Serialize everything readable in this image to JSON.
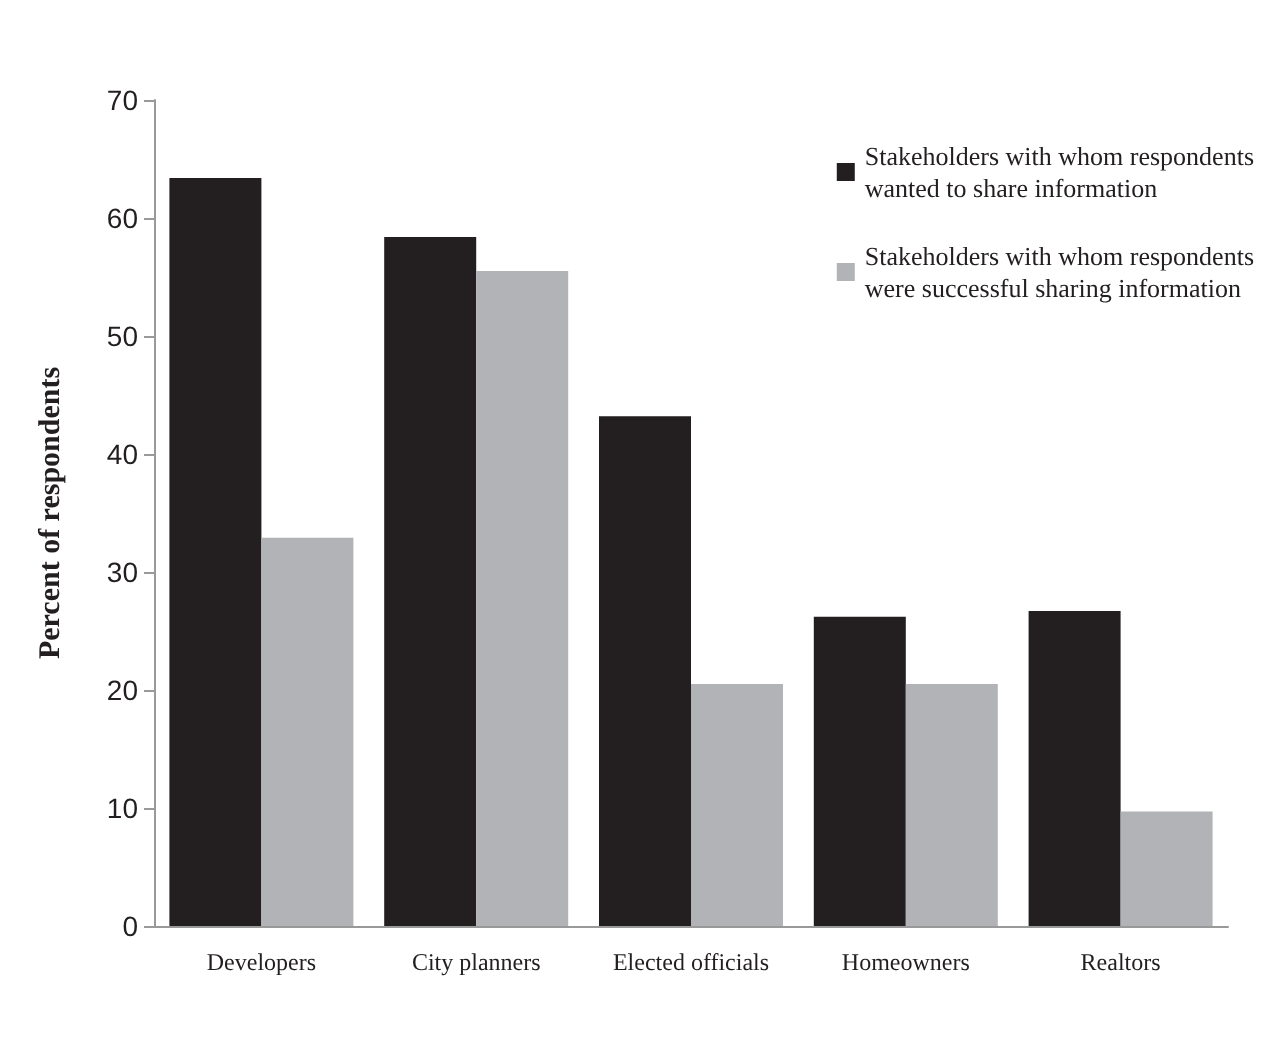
{
  "chart_data": {
    "type": "bar",
    "ylabel": "Percent of respondents",
    "categories": [
      "Developers",
      "City planners",
      "Elected officials",
      "Homeowners",
      "Realtors"
    ],
    "series": [
      {
        "name": "Stakeholders with whom respondents\nwanted to share information",
        "color": "#231f20",
        "values": [
          63.4,
          58.4,
          43.2,
          26.2,
          26.7
        ]
      },
      {
        "name": "Stakeholders with whom respondents\nwere successful sharing information",
        "color": "#b2b3b6",
        "values": [
          32.9,
          55.5,
          20.5,
          20.5,
          9.7
        ]
      }
    ],
    "ylim": [
      0,
      70
    ],
    "yticks": [
      0,
      10,
      20,
      30,
      40,
      50,
      60,
      70
    ],
    "grid": false,
    "legend": "top right"
  }
}
